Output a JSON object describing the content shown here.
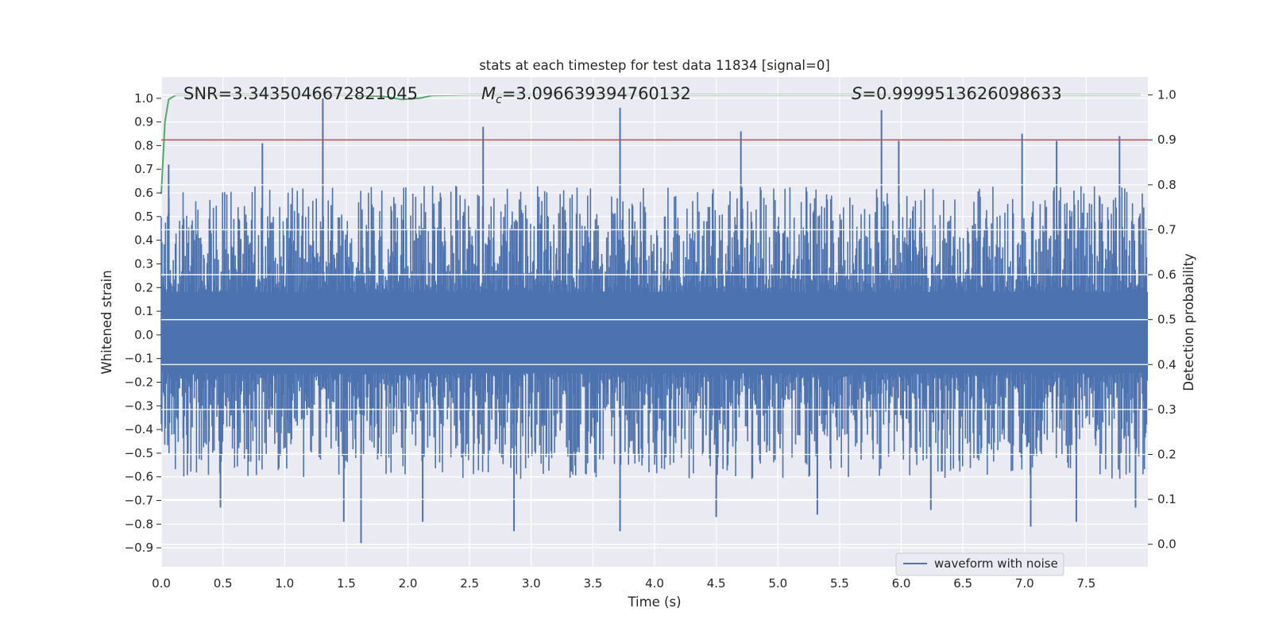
{
  "chart_data": {
    "type": "line",
    "title": "stats at each timestep for test data 11834 [signal=0]",
    "xlabel": "Time (s)",
    "ylabel": "Whitened strain",
    "ylabel_right": "Detection probability",
    "xlim": [
      0.0,
      8.0
    ],
    "ylim": [
      -0.98,
      1.09
    ],
    "ylim_right": [
      -0.05,
      1.04
    ],
    "x_ticks": [
      "0.0",
      "0.5",
      "1.0",
      "1.5",
      "2.0",
      "2.5",
      "3.0",
      "3.5",
      "4.0",
      "4.5",
      "5.0",
      "5.5",
      "6.0",
      "6.5",
      "7.0",
      "7.5"
    ],
    "y_ticks": [
      "1.0",
      "0.9",
      "0.8",
      "0.7",
      "0.6",
      "0.5",
      "0.4",
      "0.3",
      "0.2",
      "0.1",
      "0.0",
      "−0.1",
      "−0.2",
      "−0.3",
      "−0.4",
      "−0.5",
      "−0.6",
      "−0.7",
      "−0.8",
      "−0.9"
    ],
    "y_ticks_right": [
      "1.0",
      "0.9",
      "0.8",
      "0.7",
      "0.6",
      "0.5",
      "0.4",
      "0.3",
      "0.2",
      "0.1",
      "0.0"
    ],
    "grid": true,
    "legend": {
      "position": "bottom-right",
      "entries": [
        "waveform with noise"
      ]
    },
    "annotations": {
      "snr": "SNR=3.3435046672821045",
      "mc_symbol": "M",
      "mc_sub": "c",
      "mc_value": "=3.096639394760132",
      "s_symbol": "S",
      "s_value": "=0.9999513626098633"
    },
    "series": [
      {
        "name": "waveform with noise",
        "axis": "left",
        "color": "#4c72b0",
        "envelope": {
          "core_upper": 0.18,
          "core_lower": -0.16,
          "typical_peak": 0.45,
          "typical_trough": -0.45
        },
        "peaks": [
          [
            0.06,
            0.72
          ],
          [
            0.82,
            0.81
          ],
          [
            1.31,
            1.0
          ],
          [
            2.61,
            0.88
          ],
          [
            3.72,
            0.96
          ],
          [
            4.7,
            0.86
          ],
          [
            5.84,
            0.95
          ],
          [
            5.98,
            0.82
          ],
          [
            6.98,
            0.85
          ],
          [
            7.26,
            0.82
          ],
          [
            7.77,
            0.84
          ]
        ],
        "troughs": [
          [
            0.48,
            -0.73
          ],
          [
            1.48,
            -0.79
          ],
          [
            1.62,
            -0.88
          ],
          [
            2.12,
            -0.79
          ],
          [
            2.86,
            -0.83
          ],
          [
            3.72,
            -0.83
          ],
          [
            4.5,
            -0.77
          ],
          [
            5.32,
            -0.76
          ],
          [
            6.24,
            -0.74
          ],
          [
            7.05,
            -0.81
          ],
          [
            7.42,
            -0.79
          ],
          [
            7.9,
            -0.73
          ]
        ]
      },
      {
        "name": "detection probability",
        "axis": "right",
        "color": "#55a868",
        "x": [
          0.0,
          0.03,
          0.06,
          0.12,
          0.2,
          0.5,
          1.0,
          1.5,
          1.8,
          1.95,
          2.1,
          2.2,
          2.5,
          3.0,
          4.0,
          5.0,
          6.0,
          7.0,
          7.94
        ],
        "y": [
          0.78,
          0.94,
          0.99,
          1.0,
          1.0,
          1.0,
          1.0,
          1.0,
          0.997,
          0.99,
          0.993,
          0.999,
          1.0,
          1.0,
          1.0,
          1.0,
          1.0,
          1.0,
          1.0
        ]
      },
      {
        "name": "threshold",
        "axis": "right",
        "color": "#c44e52",
        "x": [
          0.0,
          8.0
        ],
        "y": [
          0.9,
          0.9
        ]
      }
    ]
  }
}
